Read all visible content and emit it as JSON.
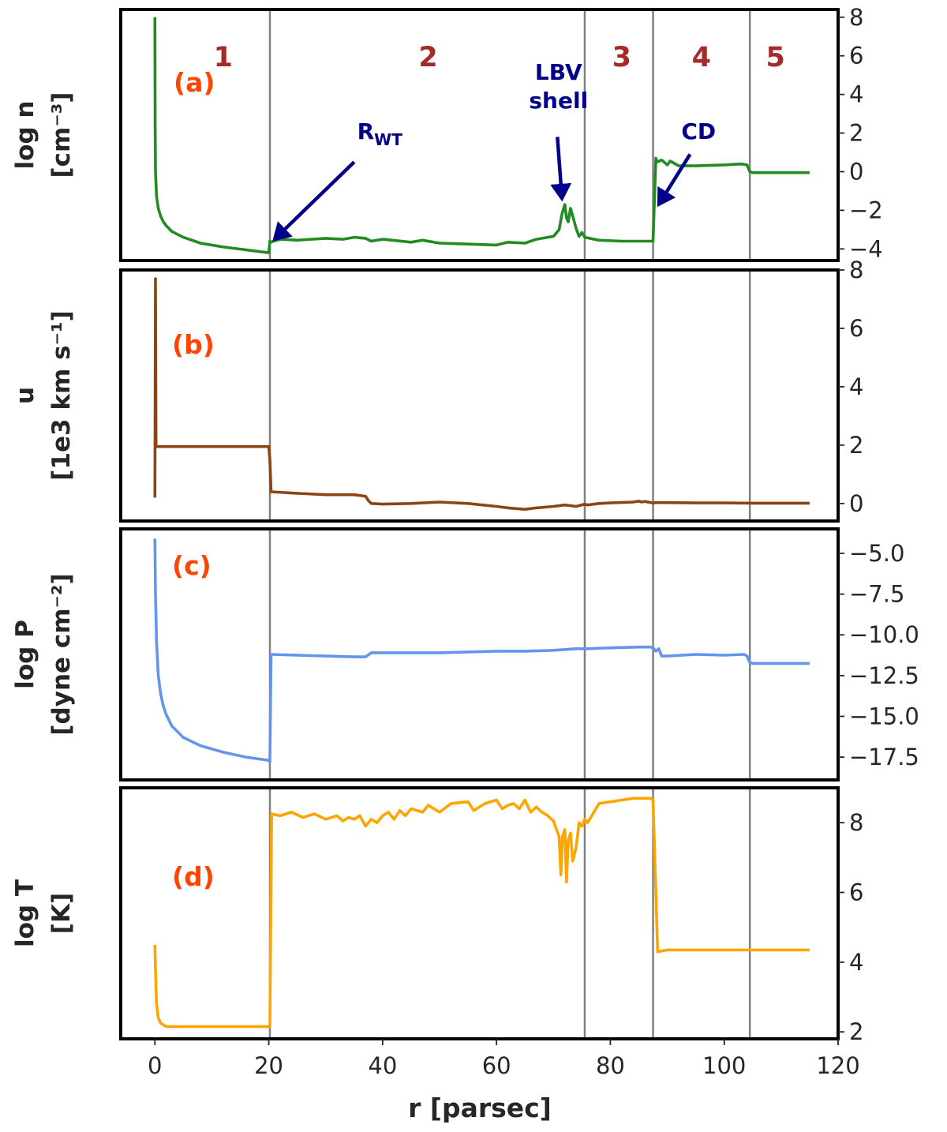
{
  "figure": {
    "xlabel": "r [parsec]",
    "x_ticks": [
      0,
      20,
      40,
      60,
      80,
      100,
      120
    ],
    "xlim": [
      -6,
      120
    ],
    "boundaries": [
      20.2,
      75.5,
      87.5,
      104.5
    ],
    "regions": [
      {
        "label": "1",
        "x": 12
      },
      {
        "label": "2",
        "x": 48
      },
      {
        "label": "3",
        "x": 82
      },
      {
        "label": "4",
        "x": 96
      },
      {
        "label": "5",
        "x": 109
      }
    ],
    "boundary_color": "#808080"
  },
  "chart_data": [
    {
      "type": "line",
      "panel_label": "(a)",
      "ylabel_line1": "log n",
      "ylabel_line2": "[cm⁻³]",
      "color": "#228b22",
      "ylim": [
        -4.6,
        8.4
      ],
      "yticks": [
        8,
        6,
        4,
        2,
        0,
        -2,
        -4
      ],
      "ytick_labels": [
        "8",
        "6",
        "4",
        "2",
        "0",
        "−2",
        "−4"
      ],
      "x": [
        0,
        0.05,
        0.1,
        0.3,
        0.6,
        1,
        1.5,
        2,
        3,
        5,
        8,
        12,
        16,
        20,
        20.2,
        20.3,
        22,
        25,
        30,
        33,
        35,
        37,
        38,
        40,
        45,
        47,
        50,
        55,
        60,
        62,
        65,
        67,
        70,
        71,
        71.5,
        72,
        72.3,
        72.6,
        73,
        73.4,
        74,
        74.5,
        75,
        75.5,
        78,
        82,
        87,
        87.5,
        88,
        88.2,
        89,
        90,
        90.5,
        92,
        95,
        100,
        103,
        104,
        104.5,
        105,
        110,
        115
      ],
      "y": [
        8.0,
        2.5,
        0.0,
        -1.3,
        -1.9,
        -2.3,
        -2.6,
        -2.8,
        -3.1,
        -3.4,
        -3.7,
        -3.9,
        -4.05,
        -4.2,
        -3.6,
        -3.65,
        -3.5,
        -3.55,
        -3.45,
        -3.5,
        -3.4,
        -3.45,
        -3.6,
        -3.5,
        -3.65,
        -3.55,
        -3.7,
        -3.75,
        -3.8,
        -3.65,
        -3.7,
        -3.5,
        -3.35,
        -3.0,
        -2.2,
        -1.7,
        -2.4,
        -2.6,
        -1.9,
        -2.3,
        -2.95,
        -3.35,
        -3.15,
        -3.4,
        -3.55,
        -3.6,
        -3.6,
        -3.6,
        0.7,
        0.5,
        0.6,
        0.35,
        0.55,
        0.3,
        0.3,
        0.35,
        0.4,
        0.35,
        0.0,
        -0.05,
        -0.05,
        -0.05
      ],
      "annotations": [
        {
          "text_main": "R",
          "text_sub": "WT",
          "text_x": 39.5,
          "text_y": 1.7,
          "arrow_from": [
            35,
            0.5
          ],
          "arrow_to": [
            21,
            -3.5
          ]
        },
        {
          "text_line1": "LBV",
          "text_line2": "shell",
          "text_x": 70.9,
          "text_y": 3.3,
          "arrow_from": [
            70.7,
            1.8
          ],
          "arrow_to": [
            71.5,
            -1.4
          ]
        },
        {
          "text_main": "CD",
          "text_x": 95.5,
          "text_y": 1.7,
          "arrow_from": [
            94,
            0.9
          ],
          "arrow_to": [
            88.5,
            -1.7
          ]
        }
      ]
    },
    {
      "type": "line",
      "panel_label": "(b)",
      "ylabel_line1": "u",
      "ylabel_line2": "[1e3 km s⁻¹]",
      "color": "#8b4513",
      "ylim": [
        -0.6,
        8.0
      ],
      "yticks": [
        8,
        6,
        4,
        2,
        0
      ],
      "ytick_labels": [
        "8",
        "6",
        "4",
        "2",
        "0"
      ],
      "x": [
        0,
        0.1,
        0.2,
        0.3,
        1,
        5,
        10,
        15,
        20,
        20.2,
        20.4,
        25,
        30,
        35,
        37,
        37.5,
        38,
        40,
        45,
        50,
        55,
        60,
        62,
        65,
        67,
        70,
        72,
        74,
        75.5,
        76,
        78,
        80,
        84,
        85,
        85.5,
        86,
        87.5,
        88,
        90,
        95,
        100,
        105,
        110,
        115
      ],
      "y": [
        0.2,
        7.7,
        1.95,
        1.95,
        1.95,
        1.95,
        1.95,
        1.95,
        1.95,
        1.5,
        0.4,
        0.35,
        0.3,
        0.3,
        0.25,
        0.1,
        0.0,
        -0.02,
        0.0,
        0.05,
        0.0,
        -0.1,
        -0.15,
        -0.2,
        -0.15,
        -0.1,
        -0.05,
        -0.1,
        -0.02,
        -0.05,
        0.0,
        0.02,
        0.05,
        0.08,
        0.05,
        0.07,
        0.02,
        0.03,
        0.03,
        0.02,
        0.02,
        0.01,
        0.01,
        0.01
      ]
    },
    {
      "type": "line",
      "panel_label": "(c)",
      "ylabel_line1": "log P",
      "ylabel_line2": "[dyne cm⁻²]",
      "color": "#6495ed",
      "ylim": [
        -18.9,
        -3.5
      ],
      "yticks": [
        -5.0,
        -7.5,
        -10.0,
        -12.5,
        -15.0,
        -17.5
      ],
      "ytick_labels": [
        "−5.0",
        "−7.5",
        "−10.0",
        "−12.5",
        "−15.0",
        "−17.5"
      ],
      "x": [
        0,
        0.1,
        0.3,
        0.6,
        1,
        1.5,
        2,
        3,
        5,
        8,
        12,
        16,
        20,
        20.2,
        20.4,
        25,
        30,
        35,
        37,
        38,
        45,
        50,
        55,
        60,
        65,
        70,
        72,
        74,
        76,
        80,
        85,
        87,
        87.5,
        88,
        88.5,
        89,
        90,
        95,
        100,
        103.5,
        104,
        104.5,
        105,
        110,
        115
      ],
      "y": [
        -4.1,
        -7.5,
        -10.5,
        -12.5,
        -13.6,
        -14.4,
        -14.9,
        -15.6,
        -16.3,
        -16.8,
        -17.2,
        -17.5,
        -17.7,
        -17.8,
        -11.2,
        -11.25,
        -11.3,
        -11.35,
        -11.35,
        -11.1,
        -11.1,
        -11.1,
        -11.05,
        -11.0,
        -11.0,
        -10.95,
        -10.9,
        -10.85,
        -10.85,
        -10.8,
        -10.75,
        -10.75,
        -10.8,
        -11.0,
        -10.85,
        -11.3,
        -11.3,
        -11.2,
        -11.25,
        -11.2,
        -11.3,
        -11.7,
        -11.75,
        -11.75,
        -11.75
      ]
    },
    {
      "type": "line",
      "panel_label": "(d)",
      "ylabel_line1": "log T",
      "ylabel_line2": "[K]",
      "color": "#ffa500",
      "ylim": [
        1.8,
        9.0
      ],
      "yticks": [
        8,
        6,
        4,
        2
      ],
      "ytick_labels": [
        "8",
        "6",
        "4",
        "2"
      ],
      "x": [
        0,
        0.1,
        0.3,
        0.6,
        1,
        1.5,
        2,
        3,
        5,
        10,
        15,
        20,
        20.2,
        20.5,
        22,
        24,
        26,
        28,
        30,
        32,
        33,
        34,
        35,
        36,
        37,
        38,
        39,
        40,
        41,
        42,
        43,
        44,
        45,
        47,
        48,
        50,
        52,
        55,
        56,
        58,
        60,
        61,
        62,
        63,
        64,
        65,
        66,
        67,
        68,
        69,
        70,
        71,
        71.3,
        71.6,
        72,
        72.3,
        72.6,
        73,
        73.4,
        74,
        74.5,
        75,
        75.5,
        76,
        78,
        80,
        82,
        84,
        85,
        86,
        87,
        87.5,
        88,
        88.3,
        90,
        95,
        100,
        104,
        105,
        110,
        115
      ],
      "y": [
        4.5,
        3.8,
        2.8,
        2.4,
        2.25,
        2.2,
        2.15,
        2.15,
        2.15,
        2.15,
        2.15,
        2.15,
        2.15,
        8.25,
        8.2,
        8.3,
        8.15,
        8.25,
        8.1,
        8.2,
        8.05,
        8.15,
        8.1,
        8.2,
        7.9,
        8.1,
        8.0,
        8.2,
        8.3,
        8.1,
        8.35,
        8.2,
        8.4,
        8.3,
        8.5,
        8.3,
        8.55,
        8.6,
        8.35,
        8.55,
        8.65,
        8.4,
        8.5,
        8.55,
        8.4,
        8.65,
        8.3,
        8.45,
        8.3,
        8.2,
        8.05,
        7.6,
        6.5,
        7.6,
        7.8,
        6.3,
        7.5,
        7.7,
        6.9,
        7.3,
        8.0,
        7.9,
        8.1,
        8.0,
        8.55,
        8.6,
        8.65,
        8.7,
        8.7,
        8.7,
        8.7,
        8.65,
        6.0,
        4.3,
        4.35,
        4.35,
        4.35,
        4.35,
        4.35,
        4.35,
        4.35
      ]
    }
  ]
}
